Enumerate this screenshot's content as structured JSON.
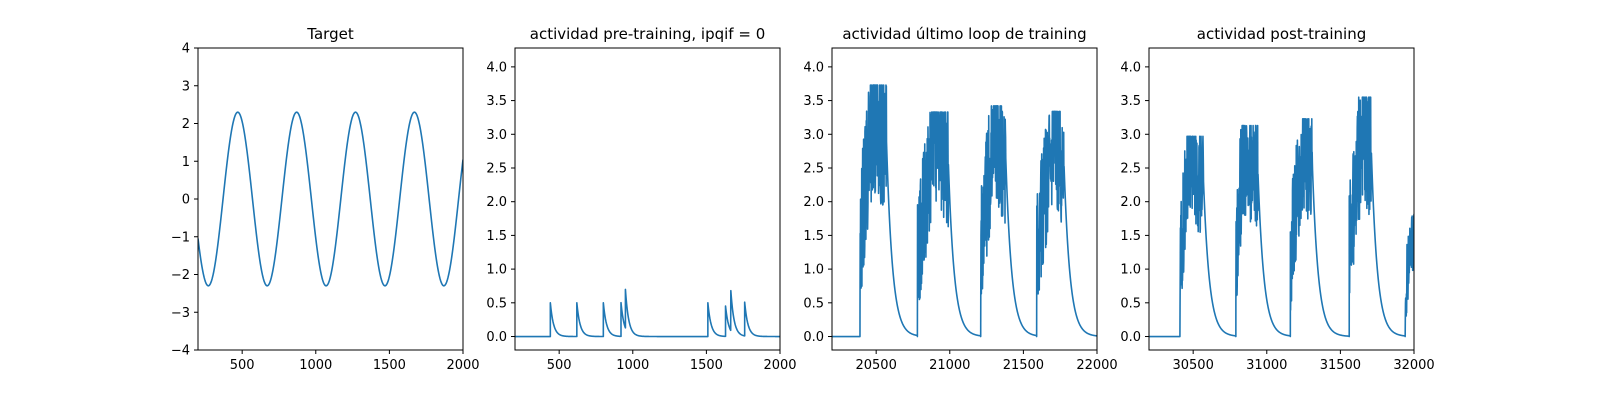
{
  "chart_data": [
    {
      "type": "line",
      "title": "Target",
      "xlim": [
        200,
        2000
      ],
      "ylim": [
        -4,
        4
      ],
      "xticks": [
        500,
        1000,
        1500,
        2000
      ],
      "yticks": [
        -4,
        -3,
        -2,
        -1,
        0,
        1,
        2,
        3,
        4
      ],
      "ytick_labels": [
        "−4",
        "−3",
        "−2",
        "−1",
        "0",
        "1",
        "2",
        "3",
        "4"
      ],
      "color": "#1f77b4",
      "series": [
        {
          "kind": "sine",
          "amplitude": 2.3,
          "period": 400,
          "peak_x": 470,
          "x_start": 200,
          "x_end": 2000
        }
      ]
    },
    {
      "type": "line",
      "title": "actividad pre-training, ipqif = 0",
      "xlim": [
        200,
        2000
      ],
      "ylim": [
        -0.2,
        4.28
      ],
      "xticks": [
        500,
        1000,
        1500,
        2000
      ],
      "yticks": [
        0.0,
        0.5,
        1.0,
        1.5,
        2.0,
        2.5,
        3.0,
        3.5,
        4.0
      ],
      "ytick_labels": [
        "0.0",
        "0.5",
        "1.0",
        "1.5",
        "2.0",
        "2.5",
        "3.0",
        "3.5",
        "4.0"
      ],
      "color": "#1f77b4",
      "series": [
        {
          "kind": "spikes",
          "baseline": 0.0,
          "decay": 22,
          "x_start": 200,
          "x_end": 2000,
          "spikes": [
            {
              "x": 440,
              "y": 0.5
            },
            {
              "x": 620,
              "y": 0.5
            },
            {
              "x": 800,
              "y": 0.5
            },
            {
              "x": 920,
              "y": 0.5
            },
            {
              "x": 950,
              "y": 0.57
            },
            {
              "x": 1510,
              "y": 0.5
            },
            {
              "x": 1630,
              "y": 0.45
            },
            {
              "x": 1665,
              "y": 0.62
            },
            {
              "x": 1760,
              "y": 0.5
            }
          ]
        }
      ]
    },
    {
      "type": "line",
      "title": "actividad último loop de training",
      "xlim": [
        20200,
        22000
      ],
      "ylim": [
        -0.2,
        4.28
      ],
      "xticks": [
        20500,
        21000,
        21500,
        22000
      ],
      "yticks": [
        0.0,
        0.5,
        1.0,
        1.5,
        2.0,
        2.5,
        3.0,
        3.5,
        4.0
      ],
      "ytick_labels": [
        "0.0",
        "0.5",
        "1.0",
        "1.5",
        "2.0",
        "2.5",
        "3.0",
        "3.5",
        "4.0"
      ],
      "color": "#1f77b4",
      "series": [
        {
          "kind": "bursts",
          "baseline": 0.0,
          "decay": 40,
          "x_start": 20200,
          "x_end": 22000,
          "bursts": [
            {
              "start": 20390,
              "peak_x": 20480,
              "end": 20570,
              "peak": 3.73
            },
            {
              "start": 20780,
              "peak_x": 20900,
              "end": 20990,
              "peak": 3.33
            },
            {
              "start": 21210,
              "peak_x": 21300,
              "end": 21380,
              "peak": 3.42
            },
            {
              "start": 21590,
              "peak_x": 21700,
              "end": 21775,
              "peak": 3.34
            }
          ]
        }
      ]
    },
    {
      "type": "line",
      "title": "actividad post-training",
      "xlim": [
        30200,
        32000
      ],
      "ylim": [
        -0.2,
        4.28
      ],
      "xticks": [
        30500,
        31000,
        31500,
        32000
      ],
      "yticks": [
        0.0,
        0.5,
        1.0,
        1.5,
        2.0,
        2.5,
        3.0,
        3.5,
        4.0
      ],
      "ytick_labels": [
        "0.0",
        "0.5",
        "1.0",
        "1.5",
        "2.0",
        "2.5",
        "3.0",
        "3.5",
        "4.0"
      ],
      "color": "#1f77b4",
      "series": [
        {
          "kind": "bursts",
          "baseline": 0.0,
          "decay": 40,
          "x_start": 30200,
          "x_end": 32000,
          "bursts": [
            {
              "start": 30410,
              "peak_x": 30470,
              "end": 30570,
              "peak": 2.97
            },
            {
              "start": 30790,
              "peak_x": 30840,
              "end": 30940,
              "peak": 3.13
            },
            {
              "start": 31160,
              "peak_x": 31250,
              "end": 31310,
              "peak": 3.23
            },
            {
              "start": 31560,
              "peak_x": 31650,
              "end": 31710,
              "peak": 3.55
            },
            {
              "start": 31940,
              "peak_x": 32000,
              "end": 32100,
              "peak": 1.82
            }
          ]
        }
      ]
    }
  ]
}
